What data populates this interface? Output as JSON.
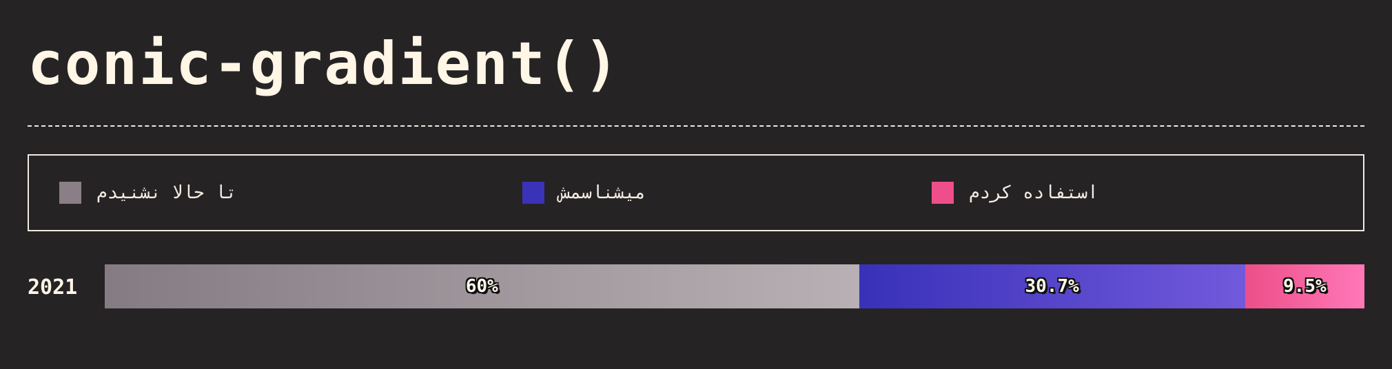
{
  "title": "conic-gradient()",
  "legend": [
    {
      "label": "تا حالا نشنیدم",
      "color": "#8a7f87"
    },
    {
      "label": "میشناسمش",
      "color": "#3a33b8"
    },
    {
      "label": "استفاده کردم",
      "color": "#ee4f8a"
    }
  ],
  "chart_data": {
    "type": "bar",
    "orientation": "horizontal",
    "stacked": true,
    "normalized": true,
    "categories": [
      "2021"
    ],
    "series": [
      {
        "name": "تا حالا نشنیدم",
        "values": [
          60
        ],
        "label": "60%",
        "color_start": "#857b83",
        "color_end": "#b8b0b4"
      },
      {
        "name": "میشناسمش",
        "values": [
          30.7
        ],
        "label": "30.7%",
        "color_start": "#3831b8",
        "color_end": "#7259dc"
      },
      {
        "name": "استفاده کردم",
        "values": [
          9.5
        ],
        "label": "9.5%",
        "color_start": "#ec4f88",
        "color_end": "#ff78b8"
      }
    ],
    "title": "conic-gradient()",
    "legend_position": "top",
    "grid": false
  }
}
